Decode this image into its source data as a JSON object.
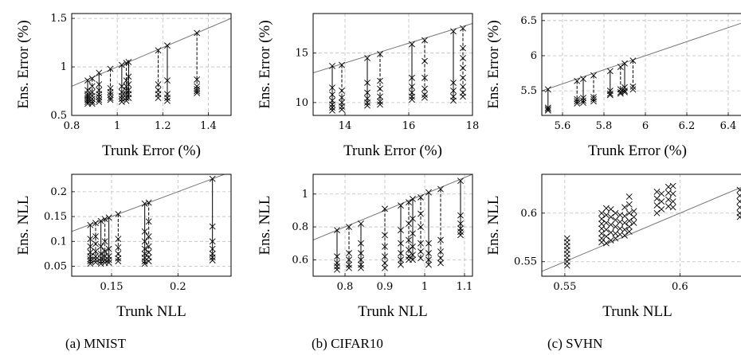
{
  "captions": [
    "(a) MNIST",
    "(b) CIFAR10",
    "(c) SVHN"
  ],
  "chart_data": [
    {
      "type": "scatter",
      "xlabel": "Trunk Error (%)",
      "ylabel": "Ens. Error (%)",
      "xlim": [
        0.8,
        1.5
      ],
      "ylim": [
        0.5,
        1.55
      ],
      "xticks": [
        "0.8",
        "1",
        "1.2",
        "1.4"
      ],
      "xtick_values": [
        0.8,
        1.0,
        1.2,
        1.4
      ],
      "yticks": [
        "0.5",
        "1",
        "1.5"
      ],
      "ytick_values": [
        0.5,
        1.0,
        1.5
      ],
      "grid": true,
      "diagonal": [
        [
          0.8,
          0.8
        ],
        [
          1.5,
          1.5
        ]
      ],
      "groups": [
        {
          "x": 0.87,
          "top": 0.86,
          "ens": [
            0.76,
            0.72,
            0.7,
            0.68,
            0.66,
            0.64,
            0.62
          ]
        },
        {
          "x": 0.89,
          "top": 0.88,
          "ens": [
            0.8,
            0.74,
            0.7,
            0.67,
            0.64,
            0.62
          ]
        },
        {
          "x": 0.92,
          "top": 0.94,
          "ens": [
            0.82,
            0.76,
            0.72,
            0.69,
            0.66,
            0.64
          ]
        },
        {
          "x": 0.97,
          "top": 0.98,
          "ens": [
            0.78,
            0.74,
            0.71,
            0.68,
            0.66
          ]
        },
        {
          "x": 1.02,
          "top": 1.02,
          "ens": [
            0.8,
            0.74,
            0.7,
            0.67,
            0.64
          ]
        },
        {
          "x": 1.04,
          "top": 1.04,
          "ens": [
            0.86,
            0.8,
            0.76,
            0.72,
            0.68,
            0.65
          ]
        },
        {
          "x": 1.05,
          "top": 1.05,
          "ens": [
            0.9,
            0.82,
            0.76,
            0.72,
            0.68
          ]
        },
        {
          "x": 1.18,
          "top": 1.17,
          "ens": [
            0.82,
            0.76,
            0.72,
            0.68
          ]
        },
        {
          "x": 1.22,
          "top": 1.22,
          "ens": [
            0.86,
            0.72,
            0.68,
            0.65
          ]
        },
        {
          "x": 1.35,
          "top": 1.35,
          "ens": [
            0.87,
            0.8,
            0.77,
            0.75,
            0.73
          ]
        }
      ]
    },
    {
      "type": "scatter",
      "xlabel": "Trunk Error (%)",
      "ylabel": "Ens. Error (%)",
      "xlim": [
        13,
        18
      ],
      "ylim": [
        8.7,
        19
      ],
      "xticks": [
        "14",
        "16",
        "18"
      ],
      "xtick_values": [
        14,
        16,
        18
      ],
      "yticks": [
        "10",
        "15"
      ],
      "ytick_values": [
        10,
        15
      ],
      "grid": true,
      "diagonal": [
        [
          13,
          13
        ],
        [
          18,
          18
        ]
      ],
      "groups": [
        {
          "x": 13.6,
          "top": 13.7,
          "ens": [
            11.5,
            10.8,
            10.2,
            9.8,
            9.5,
            9.2
          ]
        },
        {
          "x": 13.9,
          "top": 13.8,
          "ens": [
            11.2,
            10.5,
            10.0,
            9.6,
            9.3
          ]
        },
        {
          "x": 14.7,
          "top": 14.5,
          "ens": [
            12.0,
            11.0,
            10.4,
            10.0,
            9.7
          ]
        },
        {
          "x": 15.1,
          "top": 14.9,
          "ens": [
            12.2,
            11.4,
            10.6,
            10.1,
            9.8
          ]
        },
        {
          "x": 16.1,
          "top": 15.9,
          "ens": [
            12.5,
            11.6,
            11.0,
            10.6,
            10.3
          ]
        },
        {
          "x": 16.5,
          "top": 16.3,
          "ens": [
            14.2,
            12.5,
            11.4,
            10.8,
            10.5
          ]
        },
        {
          "x": 17.4,
          "top": 17.2,
          "ens": [
            12.0,
            11.2,
            10.6,
            10.2
          ]
        },
        {
          "x": 17.7,
          "top": 17.5,
          "ens": [
            15.5,
            14.5,
            13.5,
            12.5,
            11.6,
            11.0,
            10.6
          ]
        }
      ]
    },
    {
      "type": "scatter",
      "xlabel": "Trunk Error (%)",
      "ylabel": "Ens. Error (%)",
      "xlim": [
        5.5,
        6.5
      ],
      "ylim": [
        5.15,
        6.6
      ],
      "xticks": [
        "5.6",
        "5.8",
        "6",
        "6.2",
        "6.4"
      ],
      "xtick_values": [
        5.6,
        5.8,
        6.0,
        6.2,
        6.4
      ],
      "yticks": [
        "5.5",
        "6",
        "6.5"
      ],
      "ytick_values": [
        5.5,
        6.0,
        6.5
      ],
      "grid": true,
      "diagonal": [
        [
          5.5,
          5.5
        ],
        [
          6.5,
          6.5
        ]
      ],
      "groups": [
        {
          "x": 5.53,
          "top": 5.52,
          "ens": [
            5.26,
            5.24,
            5.22
          ]
        },
        {
          "x": 5.67,
          "top": 5.64,
          "ens": [
            5.38,
            5.35,
            5.32
          ]
        },
        {
          "x": 5.7,
          "top": 5.67,
          "ens": [
            5.4,
            5.36,
            5.33
          ]
        },
        {
          "x": 5.75,
          "top": 5.72,
          "ens": [
            5.41,
            5.38,
            5.35
          ]
        },
        {
          "x": 5.83,
          "top": 5.78,
          "ens": [
            5.5,
            5.46,
            5.44
          ]
        },
        {
          "x": 5.88,
          "top": 5.84,
          "ens": [
            5.52,
            5.48,
            5.46
          ]
        },
        {
          "x": 5.9,
          "top": 5.89,
          "ens": [
            5.55,
            5.5,
            5.48
          ]
        },
        {
          "x": 5.94,
          "top": 5.93,
          "ens": [
            5.56,
            5.52
          ]
        },
        {
          "x": 6.48,
          "top": 6.45,
          "ens": [
            5.9,
            5.85,
            5.8,
            5.76
          ]
        }
      ]
    },
    {
      "type": "scatter",
      "xlabel": "Trunk NLL",
      "ylabel": "Ens. NLL",
      "xlim": [
        0.12,
        0.24
      ],
      "ylim": [
        0.03,
        0.235
      ],
      "xticks": [
        "0.15",
        "0.2"
      ],
      "xtick_values": [
        0.15,
        0.2
      ],
      "yticks": [
        "0.05",
        "0.1",
        "0.15",
        "0.2"
      ],
      "ytick_values": [
        0.05,
        0.1,
        0.15,
        0.2
      ],
      "grid": true,
      "diagonal": [
        [
          0.12,
          0.12
        ],
        [
          0.24,
          0.24
        ]
      ],
      "groups": [
        {
          "x": 0.134,
          "top": 0.133,
          "ens": [
            0.105,
            0.09,
            0.078,
            0.07,
            0.064,
            0.06,
            0.055
          ]
        },
        {
          "x": 0.138,
          "top": 0.137,
          "ens": [
            0.11,
            0.095,
            0.08,
            0.07,
            0.063,
            0.058
          ]
        },
        {
          "x": 0.142,
          "top": 0.141,
          "ens": [
            0.09,
            0.075,
            0.066,
            0.06,
            0.055
          ]
        },
        {
          "x": 0.145,
          "top": 0.145,
          "ens": [
            0.1,
            0.08,
            0.07,
            0.062,
            0.057
          ]
        },
        {
          "x": 0.148,
          "top": 0.148,
          "ens": [
            0.085,
            0.07,
            0.063,
            0.057
          ]
        },
        {
          "x": 0.155,
          "top": 0.155,
          "ens": [
            0.105,
            0.088,
            0.075,
            0.066,
            0.06
          ]
        },
        {
          "x": 0.175,
          "top": 0.176,
          "ens": [
            0.12,
            0.1,
            0.085,
            0.075,
            0.067,
            0.06,
            0.055
          ]
        },
        {
          "x": 0.178,
          "top": 0.178,
          "ens": [
            0.14,
            0.11,
            0.09,
            0.078,
            0.068,
            0.06
          ]
        },
        {
          "x": 0.226,
          "top": 0.226,
          "ens": [
            0.13,
            0.1,
            0.085,
            0.075,
            0.068,
            0.062
          ]
        }
      ]
    },
    {
      "type": "scatter",
      "xlabel": "Trunk NLL",
      "ylabel": "Ens. NLL",
      "xlim": [
        0.72,
        1.12
      ],
      "ylim": [
        0.5,
        1.12
      ],
      "xticks": [
        "0.8",
        "0.9",
        "1",
        "1.1"
      ],
      "xtick_values": [
        0.8,
        0.9,
        1.0,
        1.1
      ],
      "yticks": [
        "0.6",
        "0.8",
        "1"
      ],
      "ytick_values": [
        0.6,
        0.8,
        1.0
      ],
      "grid": true,
      "diagonal": [
        [
          0.72,
          0.72
        ],
        [
          1.12,
          1.12
        ]
      ],
      "groups": [
        {
          "x": 0.78,
          "top": 0.78,
          "ens": [
            0.62,
            0.58,
            0.56,
            0.54
          ]
        },
        {
          "x": 0.81,
          "top": 0.8,
          "ens": [
            0.64,
            0.6,
            0.57,
            0.55
          ]
        },
        {
          "x": 0.84,
          "top": 0.82,
          "ens": [
            0.7,
            0.64,
            0.6,
            0.57,
            0.55
          ]
        },
        {
          "x": 0.9,
          "top": 0.91,
          "ens": [
            0.75,
            0.68,
            0.62,
            0.58,
            0.55
          ]
        },
        {
          "x": 0.94,
          "top": 0.93,
          "ens": [
            0.78,
            0.7,
            0.64,
            0.6,
            0.57
          ]
        },
        {
          "x": 0.96,
          "top": 0.95,
          "ens": [
            0.82,
            0.72,
            0.66,
            0.62,
            0.6
          ]
        },
        {
          "x": 0.97,
          "top": 0.97,
          "ens": [
            0.85,
            0.76,
            0.68,
            0.63,
            0.6
          ]
        },
        {
          "x": 0.99,
          "top": 0.98,
          "ens": [
            0.88,
            0.8,
            0.7,
            0.65,
            0.61
          ]
        },
        {
          "x": 1.01,
          "top": 1.01,
          "ens": [
            0.7,
            0.64,
            0.6,
            0.57
          ]
        },
        {
          "x": 1.04,
          "top": 1.03,
          "ens": [
            0.72,
            0.65,
            0.61,
            0.58
          ]
        },
        {
          "x": 1.09,
          "top": 1.08,
          "ens": [
            0.87,
            0.82,
            0.79,
            0.77,
            0.75
          ]
        }
      ]
    },
    {
      "type": "scatter",
      "xlabel": "Trunk NLL",
      "ylabel": "Ens. NLL",
      "xlim": [
        0.54,
        0.63
      ],
      "ylim": [
        0.535,
        0.64
      ],
      "xticks": [
        "0.55",
        "0.6"
      ],
      "xtick_values": [
        0.55,
        0.6
      ],
      "yticks": [
        "0.55",
        "0.6"
      ],
      "ytick_values": [
        0.55,
        0.6
      ],
      "grid": true,
      "diagonal": [
        [
          0.54,
          0.54
        ],
        [
          0.63,
          0.63
        ]
      ],
      "points": [
        {
          "x": 0.551,
          "y": 0.574
        },
        {
          "x": 0.551,
          "y": 0.57
        },
        {
          "x": 0.551,
          "y": 0.566
        },
        {
          "x": 0.551,
          "y": 0.562
        },
        {
          "x": 0.551,
          "y": 0.558
        },
        {
          "x": 0.551,
          "y": 0.554
        },
        {
          "x": 0.551,
          "y": 0.55
        },
        {
          "x": 0.551,
          "y": 0.546
        },
        {
          "x": 0.566,
          "y": 0.6
        },
        {
          "x": 0.566,
          "y": 0.594
        },
        {
          "x": 0.566,
          "y": 0.589
        },
        {
          "x": 0.566,
          "y": 0.584
        },
        {
          "x": 0.566,
          "y": 0.579
        },
        {
          "x": 0.566,
          "y": 0.574
        },
        {
          "x": 0.566,
          "y": 0.57
        },
        {
          "x": 0.568,
          "y": 0.605
        },
        {
          "x": 0.568,
          "y": 0.598
        },
        {
          "x": 0.568,
          "y": 0.59
        },
        {
          "x": 0.568,
          "y": 0.583
        },
        {
          "x": 0.568,
          "y": 0.576
        },
        {
          "x": 0.568,
          "y": 0.569
        },
        {
          "x": 0.57,
          "y": 0.604
        },
        {
          "x": 0.57,
          "y": 0.596
        },
        {
          "x": 0.57,
          "y": 0.588
        },
        {
          "x": 0.57,
          "y": 0.58
        },
        {
          "x": 0.57,
          "y": 0.572
        },
        {
          "x": 0.572,
          "y": 0.6
        },
        {
          "x": 0.572,
          "y": 0.593
        },
        {
          "x": 0.572,
          "y": 0.586
        },
        {
          "x": 0.572,
          "y": 0.579
        },
        {
          "x": 0.572,
          "y": 0.574
        },
        {
          "x": 0.574,
          "y": 0.598
        },
        {
          "x": 0.574,
          "y": 0.591
        },
        {
          "x": 0.574,
          "y": 0.584
        },
        {
          "x": 0.574,
          "y": 0.578
        },
        {
          "x": 0.576,
          "y": 0.606
        },
        {
          "x": 0.576,
          "y": 0.597
        },
        {
          "x": 0.576,
          "y": 0.59
        },
        {
          "x": 0.576,
          "y": 0.583
        },
        {
          "x": 0.576,
          "y": 0.577
        },
        {
          "x": 0.578,
          "y": 0.617
        },
        {
          "x": 0.578,
          "y": 0.609
        },
        {
          "x": 0.578,
          "y": 0.6
        },
        {
          "x": 0.578,
          "y": 0.592
        },
        {
          "x": 0.578,
          "y": 0.586
        },
        {
          "x": 0.578,
          "y": 0.581
        },
        {
          "x": 0.58,
          "y": 0.602
        },
        {
          "x": 0.58,
          "y": 0.596
        },
        {
          "x": 0.58,
          "y": 0.59
        },
        {
          "x": 0.59,
          "y": 0.622
        },
        {
          "x": 0.59,
          "y": 0.615
        },
        {
          "x": 0.59,
          "y": 0.608
        },
        {
          "x": 0.59,
          "y": 0.6
        },
        {
          "x": 0.592,
          "y": 0.62
        },
        {
          "x": 0.592,
          "y": 0.612
        },
        {
          "x": 0.592,
          "y": 0.604
        },
        {
          "x": 0.595,
          "y": 0.627
        },
        {
          "x": 0.595,
          "y": 0.621
        },
        {
          "x": 0.595,
          "y": 0.614
        },
        {
          "x": 0.595,
          "y": 0.607
        },
        {
          "x": 0.597,
          "y": 0.628
        },
        {
          "x": 0.597,
          "y": 0.62
        },
        {
          "x": 0.597,
          "y": 0.612
        },
        {
          "x": 0.597,
          "y": 0.606
        },
        {
          "x": 0.626,
          "y": 0.624
        },
        {
          "x": 0.626,
          "y": 0.618
        },
        {
          "x": 0.626,
          "y": 0.612
        },
        {
          "x": 0.626,
          "y": 0.606
        },
        {
          "x": 0.626,
          "y": 0.6
        },
        {
          "x": 0.626,
          "y": 0.596
        }
      ]
    }
  ]
}
